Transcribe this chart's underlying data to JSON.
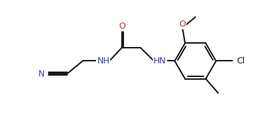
{
  "bg_color": "#ffffff",
  "line_color": "#1a1a1a",
  "N_color": "#3838b0",
  "O_color": "#b03030",
  "bond_lw": 1.5,
  "font_size": 9.0,
  "figsize": [
    3.97,
    1.79
  ],
  "dpi": 100,
  "xlim": [
    0,
    10.5
  ],
  "ylim": [
    0,
    4.7
  ]
}
